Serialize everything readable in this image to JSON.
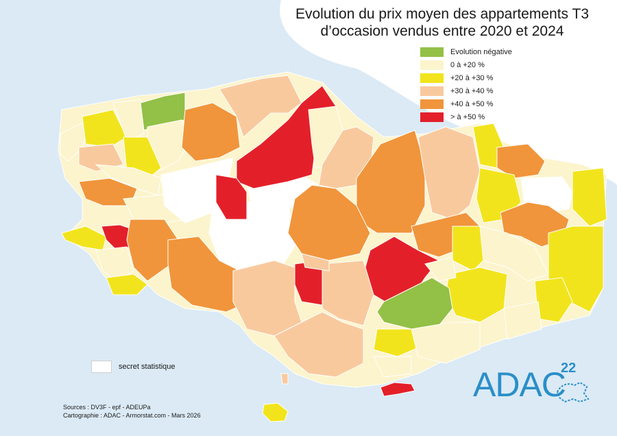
{
  "title_line1": "Evolution du prix moyen des appartements T3",
  "title_line2": "d’occasion vendus entre 2020 et 2024",
  "colors": {
    "negative": "#93c047",
    "c0_20": "#fcf4cc",
    "c20_30": "#f2e41c",
    "c30_40": "#f9c99e",
    "c40_50": "#f0953b",
    "c50_plus": "#e3202a",
    "secret": "#ffffff",
    "sea": "#dbeaf5"
  },
  "legend": [
    {
      "label": "Evolution négative",
      "color": "#93c047"
    },
    {
      "label": "0 à +20 %",
      "color": "#fcf4cc"
    },
    {
      "label": "+20 à +30 %",
      "color": "#f2e41c"
    },
    {
      "label": "+30 à +40 %",
      "color": "#f9c99e"
    },
    {
      "label": "+40 à +50 %",
      "color": "#f0953b"
    },
    {
      "label": "> à +50 %",
      "color": "#e3202a"
    }
  ],
  "secret_label": "secret  statistique",
  "sources_line1": "Sources : DV3F - epf - ADEUPa",
  "sources_line2": "Cartographie : ADAC - Armorstat.com - Mars 2026",
  "logo_text": "ADAC",
  "logo_sup": "22"
}
